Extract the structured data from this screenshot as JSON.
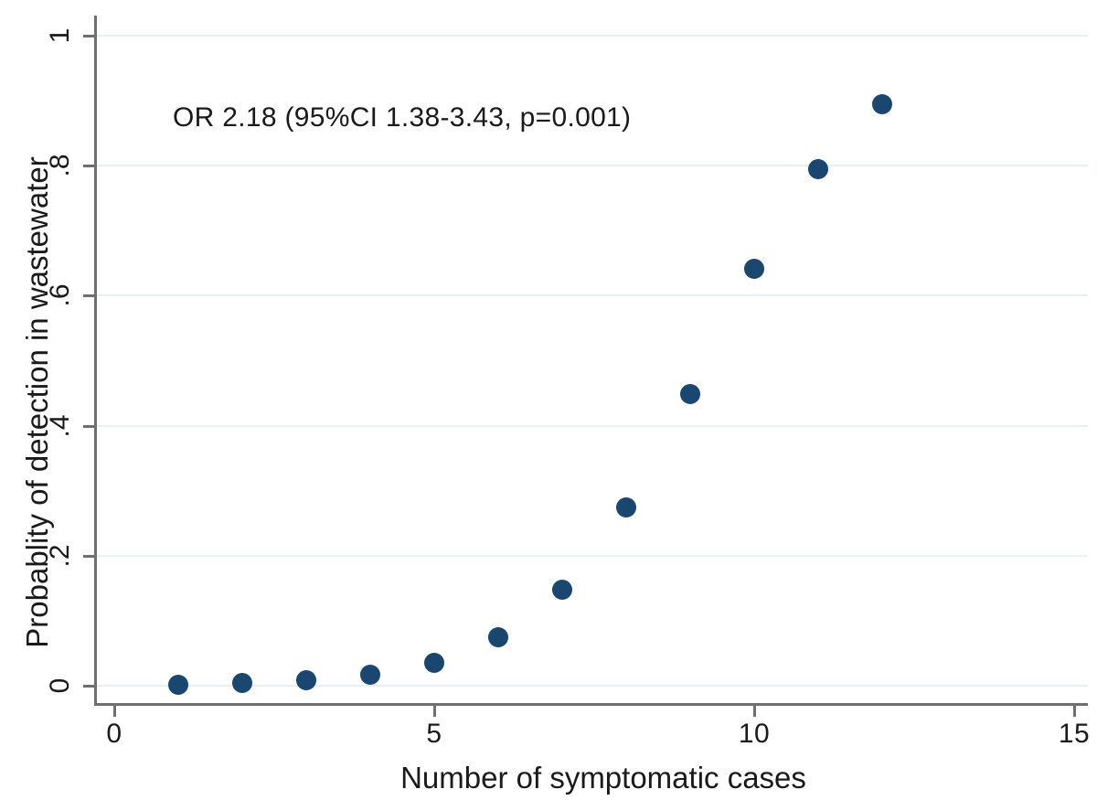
{
  "chart_data": {
    "type": "scatter",
    "title": "",
    "xlabel": "Number of symptomatic cases",
    "ylabel": "Probablity of detection in wastewater",
    "annotation": "OR 2.18 (95%CI 1.38-3.43, p=0.001)",
    "x_ticks": [
      0,
      5,
      10,
      15
    ],
    "y_ticks": [
      {
        "label": "0",
        "value": 0
      },
      {
        "label": ".2",
        "value": 0.2
      },
      {
        "label": ".4",
        "value": 0.4
      },
      {
        "label": ".6",
        "value": 0.6
      },
      {
        "label": ".8",
        "value": 0.8
      },
      {
        "label": "1",
        "value": 1
      }
    ],
    "xlim": [
      -0.3,
      15.2
    ],
    "ylim": [
      0,
      1
    ],
    "grid": "horizontal",
    "legend": "none",
    "points": [
      {
        "x": 1,
        "y": 0.002
      },
      {
        "x": 2,
        "y": 0.004
      },
      {
        "x": 3,
        "y": 0.008
      },
      {
        "x": 4,
        "y": 0.017
      },
      {
        "x": 5,
        "y": 0.035
      },
      {
        "x": 6,
        "y": 0.074
      },
      {
        "x": 7,
        "y": 0.148
      },
      {
        "x": 8,
        "y": 0.274
      },
      {
        "x": 9,
        "y": 0.449
      },
      {
        "x": 10,
        "y": 0.642
      },
      {
        "x": 11,
        "y": 0.795
      },
      {
        "x": 12,
        "y": 0.894
      }
    ],
    "colors": {
      "point": "#1a476f",
      "gridline": "#e8f1f2",
      "axis": "#6f6f6f",
      "text": "#1a1a1a",
      "background": "#ffffff"
    }
  }
}
